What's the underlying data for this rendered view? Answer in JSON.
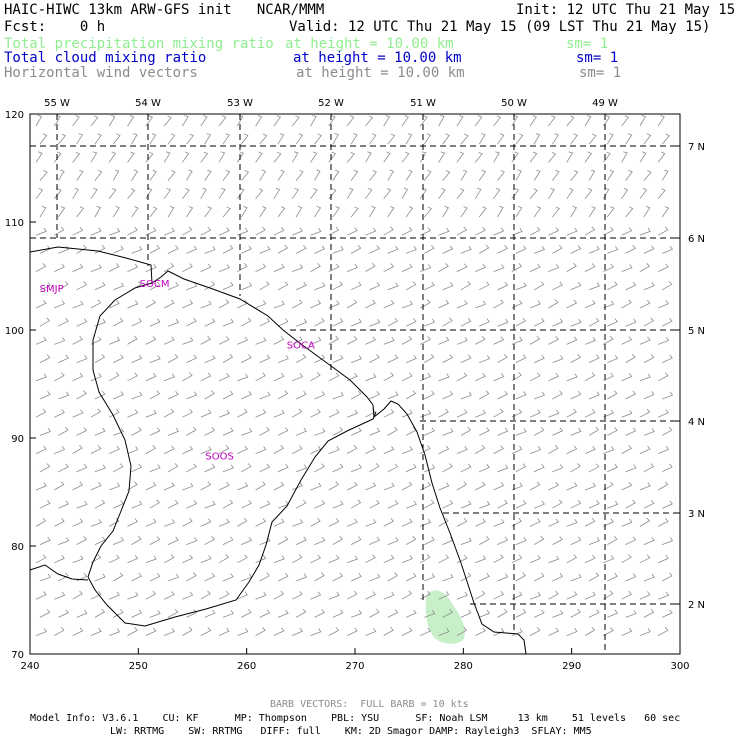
{
  "header": {
    "title": "HAIC-HIWC 13km ARW-GFS init   NCAR/MMM",
    "init": "Init: 12 UTC Thu 21 May 15",
    "fcst": "Fcst:    0 h",
    "valid": "Valid: 12 UTC Thu 21 May 15 (09 LST Thu 21 May 15)",
    "fields": [
      {
        "name": "Total precipitation mixing ratio",
        "height": "at height = 10.00 km",
        "sm": "sm= 1",
        "color": "#90ee90"
      },
      {
        "name": "Total cloud mixing ratio",
        "height": "at height = 10.00 km",
        "sm": "sm= 1",
        "color": "#0000c8"
      },
      {
        "name": "Horizontal wind vectors",
        "height": "at height = 10.00 km",
        "sm": "sm= 1",
        "color": "#8c8c8c"
      }
    ]
  },
  "map": {
    "lon_labels": [
      "55 W",
      "54 W",
      "53 W",
      "52 W",
      "51 W",
      "50 W",
      "49 W"
    ],
    "lat_labels": [
      "7 N",
      "6 N",
      "5 N",
      "4 N",
      "3 N",
      "2 N"
    ],
    "x_ticks": [
      "240",
      "250",
      "260",
      "270",
      "280",
      "290",
      "300"
    ],
    "y_ticks": [
      "70",
      "80",
      "90",
      "100",
      "110",
      "120"
    ],
    "sites": [
      {
        "id": "SMJP",
        "x": 242,
        "y": 103.5
      },
      {
        "id": "SOCM",
        "x": 251.5,
        "y": 104
      },
      {
        "id": "SOCA",
        "x": 265,
        "y": 98.3
      },
      {
        "id": "SOOS",
        "x": 257.5,
        "y": 88
      }
    ],
    "precip_color": "#c8f0c8",
    "wind_color": "#8c8c8c",
    "site_color": "#c000c0"
  },
  "footer": {
    "barb_note": "BARB VECTORS:  FULL BARB = 10 kts",
    "line1": "Model Info: V3.6.1    CU: KF      MP: Thompson    PBL: YSU      SF: Noah LSM     13 km    51 levels   60 sec",
    "line2": "LW: RRTMG    SW: RRTMG   DIFF: full    KM: 2D Smagor DAMP: Rayleigh3  SFLAY: MM5"
  }
}
